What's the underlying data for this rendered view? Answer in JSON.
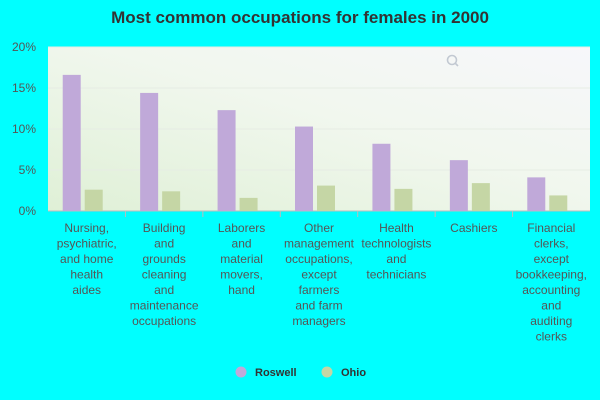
{
  "chart_data": {
    "type": "bar",
    "title": "Most common occupations for females in 2000",
    "xlabel": "",
    "ylabel": "",
    "ylim": [
      0,
      20
    ],
    "yticks": [
      "0%",
      "5%",
      "10%",
      "15%",
      "20%"
    ],
    "ytick_values": [
      0,
      5,
      10,
      15,
      20
    ],
    "categories": [
      "Nursing, psychiatric, and home health aides",
      "Building and grounds cleaning and maintenance occupations",
      "Laborers and material movers, hand",
      "Other management occupations, except farmers and farm managers",
      "Health technologists and technicians",
      "Cashiers",
      "Financial clerks, except bookkeeping, accounting and auditing clerks"
    ],
    "category_label_lines": [
      [
        "Nursing,",
        "psychiatric,",
        "and home",
        "health",
        "aides"
      ],
      [
        "Building",
        "and",
        "grounds",
        "cleaning",
        "and",
        "maintenance",
        "occupations"
      ],
      [
        "Laborers",
        "and",
        "material",
        "movers,",
        "hand"
      ],
      [
        "Other",
        "management",
        "occupations,",
        "except",
        "farmers",
        "and farm",
        "managers"
      ],
      [
        "Health",
        "technologists",
        "and",
        "technicians"
      ],
      [
        "Cashiers"
      ],
      [
        "Financial",
        "clerks,",
        "except",
        "bookkeeping,",
        "accounting",
        "and",
        "auditing",
        "clerks"
      ]
    ],
    "series": [
      {
        "name": "Roswell",
        "color": "#c0a9d9",
        "values": [
          16.6,
          14.4,
          12.3,
          10.3,
          8.2,
          6.2,
          4.1
        ]
      },
      {
        "name": "Ohio",
        "color": "#c5d6a5",
        "values": [
          2.6,
          2.4,
          1.6,
          3.1,
          2.7,
          3.4,
          1.9
        ]
      }
    ],
    "grid": true,
    "legend_position": "bottom"
  }
}
